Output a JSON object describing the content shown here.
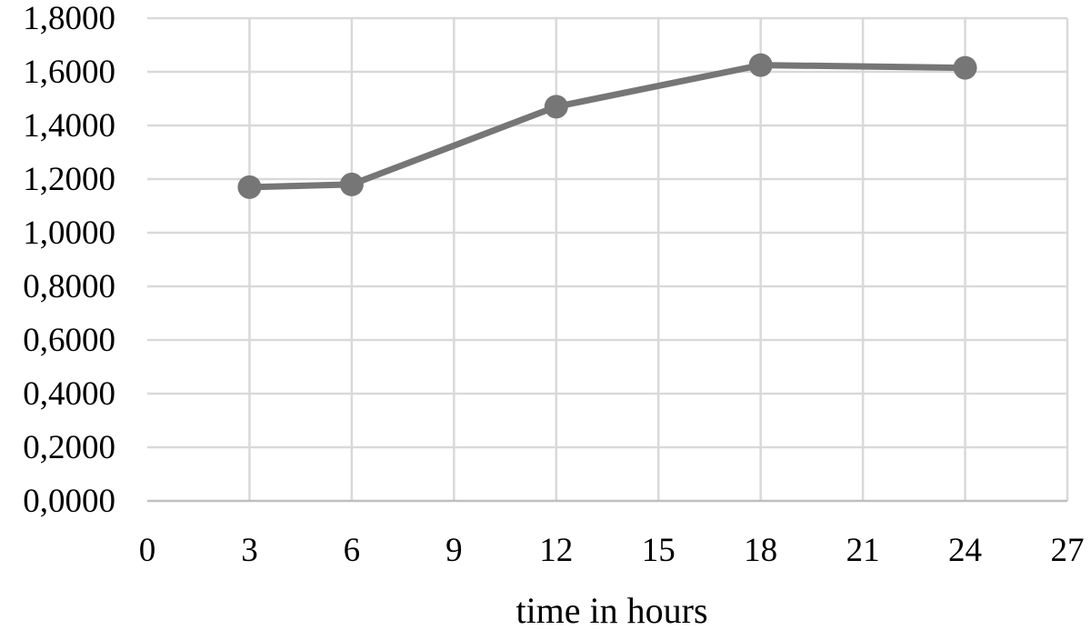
{
  "chart_data": {
    "type": "line",
    "title": "",
    "xlabel": "time in hours",
    "ylabel": "",
    "xlim": [
      0,
      27
    ],
    "ylim": [
      0,
      1.8
    ],
    "x_ticks": [
      "0",
      "3",
      "6",
      "9",
      "12",
      "15",
      "18",
      "21",
      "24",
      "27"
    ],
    "y_ticks": [
      "0,0000",
      "0,2000",
      "0,4000",
      "0,6000",
      "0,8000",
      "1,0000",
      "1,2000",
      "1,4000",
      "1,6000",
      "1,8000"
    ],
    "grid": true,
    "legend": "none",
    "series": [
      {
        "x": [
          3,
          6,
          12,
          18,
          24
        ],
        "y": [
          1.17,
          1.18,
          1.47,
          1.625,
          1.615
        ],
        "color": "#767676"
      }
    ]
  }
}
